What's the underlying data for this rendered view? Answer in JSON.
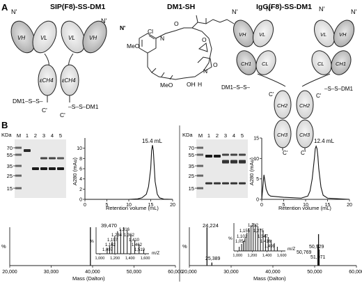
{
  "panel_a": {
    "letter": "A",
    "sip_title": "SIP(F8)-SS-DM1",
    "dm1_title": "DM1-SH",
    "igg_title": "IgG(F8)-SS-DM1",
    "n_term": "N'",
    "c_term": "C'",
    "vh": "VH",
    "vl": "VL",
    "ch4": "εCH4",
    "ch1": "CH1",
    "ch2": "CH2",
    "ch3": "CH3",
    "cl": "CL",
    "linker_left": "DM1–S–S–",
    "linker_right": "–S–S–DM1",
    "dm1_cl": "Cl",
    "dm1_meo": "MeO",
    "dm1_meo2": "MeO",
    "dm1_oh": "OH",
    "dm1_sh": "SH",
    "dm1_h": "H",
    "dm1_o": "O",
    "dm1_n": "N"
  },
  "panel_b": {
    "letter": "B",
    "gel_left": {
      "unit": "KDa",
      "lanes": [
        "M",
        "1",
        "2",
        "3",
        "4",
        "5"
      ],
      "markers": [
        "70",
        "55",
        "35",
        "25",
        "15"
      ]
    },
    "gel_right": {
      "unit": "KDa",
      "lanes": [
        "M",
        "1",
        "2",
        "3",
        "4",
        "5"
      ],
      "markers": [
        "70",
        "55",
        "35",
        "25",
        "15"
      ]
    },
    "sec_left": {
      "peak_label": "15.4 mL",
      "ylabel": "A280 (mAu)",
      "xlabel": "Retention volume (mL)"
    },
    "sec_right": {
      "peak_label": "12.4 mL",
      "ylabel": "A280 (mAu)",
      "xlabel": "Retention volume (mL)"
    },
    "ms_left": {
      "ylabel": "%",
      "xlabel": "Mass (Dalton)",
      "peak": "39,470",
      "inset_xlabel": "m/Z",
      "inset_ylabel": "%",
      "inset_peaks": [
        "1,316",
        "1,234",
        "1,362",
        "1,197",
        "1,410",
        "1,162",
        "1,462",
        "1,097",
        "1,519"
      ]
    },
    "ms_right": {
      "ylabel": "%",
      "xlabel": "Mass (Dalton)",
      "peaks": [
        "24,224",
        "25,389",
        "50,929",
        "50,769",
        "51,071"
      ],
      "inset_xlabel": "m/Z",
      "inset_ylabel": "%",
      "inset_peaks": [
        "1,212",
        "1,155",
        "1,275",
        "1,102",
        "1,347",
        "1,054",
        "1,416",
        "1,499"
      ]
    }
  },
  "chart_data": [
    {
      "type": "line",
      "title": "",
      "xlabel": "Retention volume (mL)",
      "ylabel": "A280 (mAu)",
      "xlim": [
        0,
        20
      ],
      "ylim": [
        0,
        12
      ],
      "xticks": [
        0,
        5,
        10,
        15,
        20
      ],
      "yticks": [
        0,
        2,
        4,
        6,
        8,
        10
      ],
      "annotation": "15.4 mL",
      "x": [
        0,
        5,
        10,
        12,
        13,
        14,
        14.5,
        15,
        15.2,
        15.4,
        15.6,
        15.8,
        16,
        16.5,
        17,
        18,
        20
      ],
      "y": [
        0,
        0,
        0,
        0.1,
        0.3,
        1.0,
        2.5,
        6.0,
        9.5,
        10.6,
        9.5,
        6.5,
        3.5,
        1.0,
        0.3,
        0.05,
        0
      ]
    },
    {
      "type": "line",
      "title": "",
      "xlabel": "Retention volume (mL)",
      "ylabel": "A280 (mAu)",
      "xlim": [
        0,
        20
      ],
      "ylim": [
        0,
        15
      ],
      "xticks": [
        0,
        5,
        10,
        15,
        20
      ],
      "yticks": [
        0,
        5,
        10,
        15
      ],
      "annotation": "12.4 mL",
      "x": [
        0,
        0.5,
        1,
        1.5,
        2,
        5,
        9,
        10.5,
        11,
        11.5,
        12,
        12.2,
        12.4,
        12.6,
        12.8,
        13,
        13.5,
        14,
        15,
        20
      ],
      "y": [
        0,
        6,
        2.5,
        1.2,
        0.8,
        0.5,
        0.3,
        0.8,
        2,
        5,
        10,
        12.4,
        13.0,
        12.4,
        10.5,
        7.5,
        3.0,
        1.0,
        0.3,
        0
      ]
    },
    {
      "type": "bar",
      "title": "",
      "xlabel": "Mass (Dalton)",
      "ylabel": "%",
      "xlim": [
        20000,
        60000
      ],
      "ylim": [
        0,
        100
      ],
      "xticks": [
        20000,
        30000,
        40000,
        50000,
        60000
      ],
      "xticklabels": [
        "20,000",
        "30,000",
        "40,000",
        "50,000",
        "60,000"
      ],
      "x": [
        39470
      ],
      "values": [
        100
      ],
      "annotations": [
        "39,470"
      ]
    },
    {
      "type": "bar",
      "title": "",
      "xlabel": "m/Z",
      "ylabel": "%",
      "xlim": [
        950,
        1650
      ],
      "ylim": [
        0,
        100
      ],
      "xticklabels": [
        "1,000",
        "1,200",
        "1,400",
        "1,600"
      ],
      "x": [
        1097,
        1130,
        1162,
        1197,
        1234,
        1275,
        1316,
        1362,
        1410,
        1462,
        1519,
        1580
      ],
      "values": [
        20,
        30,
        45,
        65,
        85,
        92,
        100,
        88,
        70,
        50,
        35,
        15
      ]
    },
    {
      "type": "bar",
      "title": "",
      "xlabel": "Mass (Dalton)",
      "ylabel": "%",
      "xlim": [
        20000,
        60000
      ],
      "ylim": [
        0,
        100
      ],
      "xticks": [
        20000,
        30000,
        40000,
        50000,
        60000
      ],
      "xticklabels": [
        "20,000",
        "30,000",
        "40,000",
        "50,000",
        "60,000"
      ],
      "x": [
        24224,
        25389,
        50769,
        50929,
        51071
      ],
      "values": [
        100,
        8,
        55,
        82,
        42
      ],
      "annotations": [
        "24,224",
        "25,389",
        "50,769",
        "50,929",
        "51,071"
      ]
    },
    {
      "type": "bar",
      "title": "",
      "xlabel": "m/Z",
      "ylabel": "%",
      "xlim": [
        950,
        1650
      ],
      "ylim": [
        0,
        100
      ],
      "xticklabels": [
        "1,000",
        "1,200",
        "1,400",
        "1,600"
      ],
      "x": [
        1022,
        1054,
        1078,
        1102,
        1128,
        1155,
        1183,
        1212,
        1243,
        1275,
        1310,
        1347,
        1380,
        1416,
        1455,
        1499,
        1540
      ],
      "values": [
        15,
        25,
        35,
        48,
        65,
        82,
        92,
        100,
        95,
        88,
        80,
        72,
        60,
        50,
        40,
        28,
        15
      ]
    }
  ]
}
